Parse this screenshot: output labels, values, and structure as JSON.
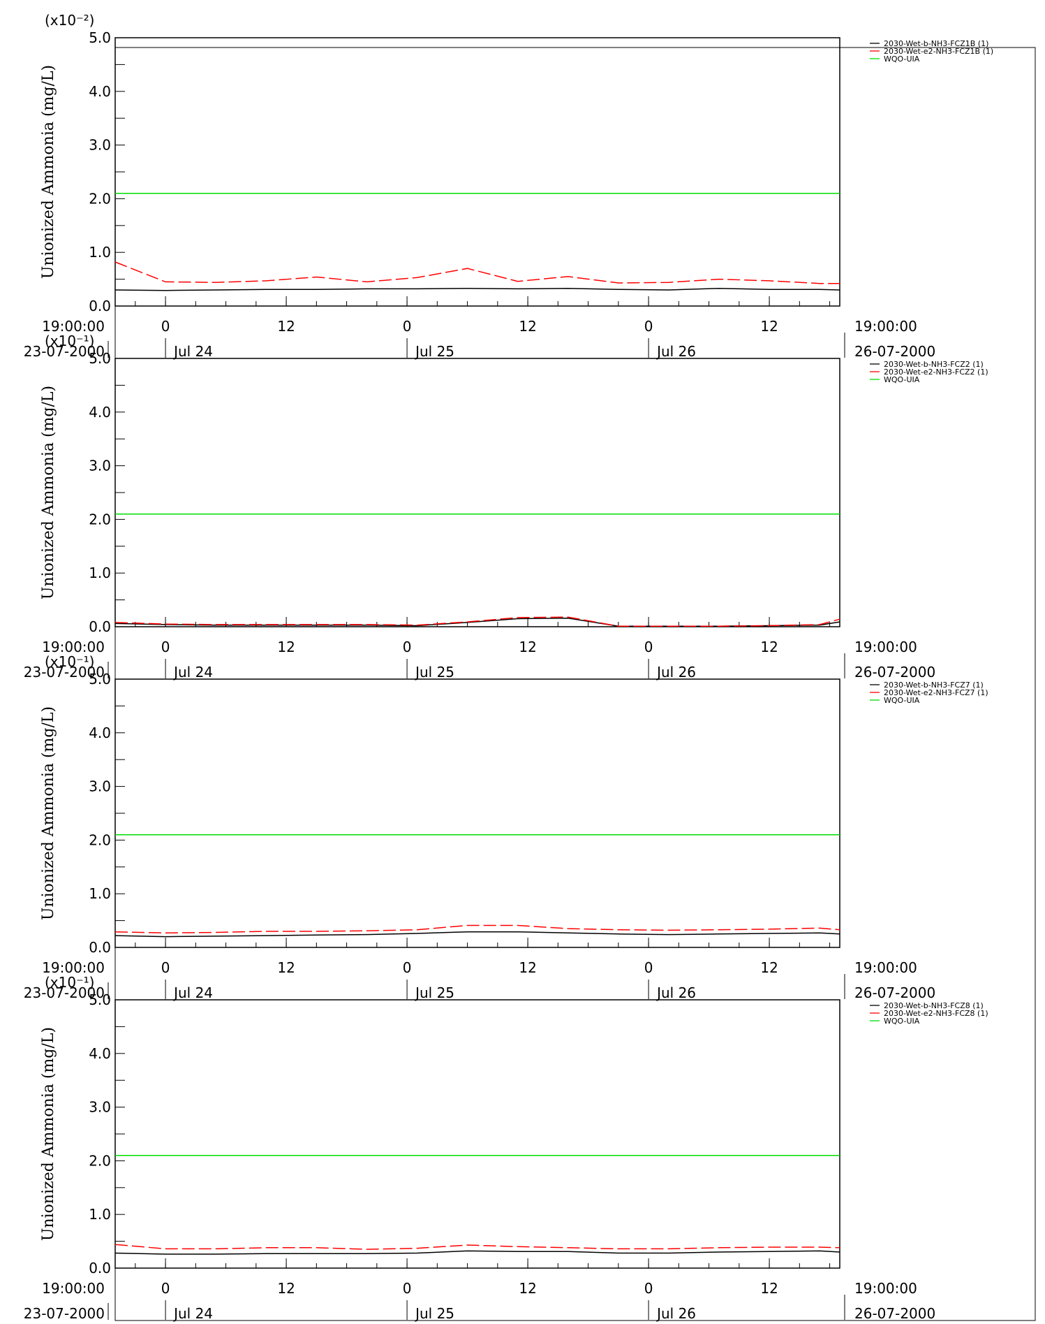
{
  "chart_data": [
    {
      "type": "line",
      "ylabel": "Unionized Ammonia (mg/L)",
      "y_multiplier_label": "(x10⁻²)",
      "ylim": [
        0,
        5.0
      ],
      "y_ticks": [
        "0.0",
        "1.0",
        "2.0",
        "3.0",
        "4.0",
        "5.0"
      ],
      "x_range": [
        "2000-07-23 19:00",
        "2000-07-26 19:00"
      ],
      "x_tick_labels": [
        "0",
        "12",
        "0",
        "12",
        "0",
        "12"
      ],
      "x_day_labels": [
        "Jul 24",
        "Jul 25",
        "Jul 26"
      ],
      "x_start_label": [
        "19:00:00",
        "23-07-2000"
      ],
      "x_end_label": [
        "19:00:00",
        "26-07-2000"
      ],
      "x_hours": [
        0,
        5,
        10,
        15,
        20,
        25,
        30,
        35,
        40,
        45,
        50,
        55,
        60,
        65,
        70,
        72
      ],
      "series": [
        {
          "name": "2030-Wet-b-NH3-FCZ1B (1)",
          "color": "#000000",
          "dash": "solid",
          "values": [
            0.3,
            0.29,
            0.3,
            0.31,
            0.31,
            0.32,
            0.32,
            0.33,
            0.32,
            0.33,
            0.31,
            0.3,
            0.33,
            0.31,
            0.31,
            0.3
          ]
        },
        {
          "name": "2030-Wet-e2-NH3-FCZ1B (1)",
          "color": "#ff0000",
          "dash": "dashed",
          "values": [
            0.82,
            0.45,
            0.44,
            0.47,
            0.54,
            0.45,
            0.53,
            0.7,
            0.46,
            0.55,
            0.43,
            0.44,
            0.5,
            0.47,
            0.42,
            0.42
          ]
        },
        {
          "name": "WQO-UIA",
          "color": "#00dd00",
          "dash": "solid",
          "values": [
            2.1,
            2.1,
            2.1,
            2.1,
            2.1,
            2.1,
            2.1,
            2.1,
            2.1,
            2.1,
            2.1,
            2.1,
            2.1,
            2.1,
            2.1,
            2.1
          ]
        }
      ]
    },
    {
      "type": "line",
      "ylabel": "Unionized Ammonia (mg/L)",
      "y_multiplier_label": "(x10⁻¹)",
      "ylim": [
        0,
        5.0
      ],
      "y_ticks": [
        "0.0",
        "1.0",
        "2.0",
        "3.0",
        "4.0",
        "5.0"
      ],
      "x_range": [
        "2000-07-23 19:00",
        "2000-07-26 19:00"
      ],
      "x_tick_labels": [
        "0",
        "12",
        "0",
        "12",
        "0",
        "12"
      ],
      "x_day_labels": [
        "Jul 24",
        "Jul 25",
        "Jul 26"
      ],
      "x_start_label": [
        "19:00:00",
        "23-07-2000"
      ],
      "x_end_label": [
        "19:00:00",
        "26-07-2000"
      ],
      "x_hours": [
        0,
        5,
        10,
        15,
        20,
        25,
        30,
        35,
        40,
        45,
        50,
        55,
        60,
        65,
        70,
        72
      ],
      "series": [
        {
          "name": "2030-Wet-b-NH3-FCZ2 (1)",
          "color": "#000000",
          "dash": "solid",
          "values": [
            0.06,
            0.04,
            0.03,
            0.03,
            0.03,
            0.03,
            0.02,
            0.08,
            0.15,
            0.16,
            0.01,
            0.01,
            0.01,
            0.02,
            0.03,
            0.09
          ]
        },
        {
          "name": "2030-Wet-e2-NH3-FCZ2 (1)",
          "color": "#ff0000",
          "dash": "dashed",
          "values": [
            0.08,
            0.05,
            0.04,
            0.04,
            0.04,
            0.04,
            0.03,
            0.09,
            0.17,
            0.18,
            0.01,
            0.01,
            0.01,
            0.02,
            0.04,
            0.14
          ]
        },
        {
          "name": "WQO-UIA",
          "color": "#00dd00",
          "dash": "solid",
          "values": [
            2.1,
            2.1,
            2.1,
            2.1,
            2.1,
            2.1,
            2.1,
            2.1,
            2.1,
            2.1,
            2.1,
            2.1,
            2.1,
            2.1,
            2.1,
            2.1
          ]
        }
      ]
    },
    {
      "type": "line",
      "ylabel": "Unionized Ammonia (mg/L)",
      "y_multiplier_label": "(x10⁻¹)",
      "ylim": [
        0,
        5.0
      ],
      "y_ticks": [
        "0.0",
        "1.0",
        "2.0",
        "3.0",
        "4.0",
        "5.0"
      ],
      "x_range": [
        "2000-07-23 19:00",
        "2000-07-26 19:00"
      ],
      "x_tick_labels": [
        "0",
        "12",
        "0",
        "12",
        "0",
        "12"
      ],
      "x_day_labels": [
        "Jul 24",
        "Jul 25",
        "Jul 26"
      ],
      "x_start_label": [
        "19:00:00",
        "23-07-2000"
      ],
      "x_end_label": [
        "19:00:00",
        "26-07-2000"
      ],
      "x_hours": [
        0,
        5,
        10,
        15,
        20,
        25,
        30,
        35,
        40,
        45,
        50,
        55,
        60,
        65,
        70,
        72
      ],
      "series": [
        {
          "name": "2030-Wet-b-NH3-FCZ7 (1)",
          "color": "#000000",
          "dash": "solid",
          "values": [
            0.22,
            0.2,
            0.21,
            0.22,
            0.23,
            0.24,
            0.26,
            0.29,
            0.29,
            0.27,
            0.25,
            0.24,
            0.25,
            0.26,
            0.27,
            0.25
          ]
        },
        {
          "name": "2030-Wet-e2-NH3-FCZ7 (1)",
          "color": "#ff0000",
          "dash": "dashed",
          "values": [
            0.29,
            0.27,
            0.28,
            0.3,
            0.3,
            0.31,
            0.33,
            0.41,
            0.41,
            0.35,
            0.33,
            0.32,
            0.33,
            0.34,
            0.36,
            0.33
          ]
        },
        {
          "name": "WQO-UIA",
          "color": "#00dd00",
          "dash": "solid",
          "values": [
            2.1,
            2.1,
            2.1,
            2.1,
            2.1,
            2.1,
            2.1,
            2.1,
            2.1,
            2.1,
            2.1,
            2.1,
            2.1,
            2.1,
            2.1,
            2.1
          ]
        }
      ]
    },
    {
      "type": "line",
      "ylabel": "Unionized Ammonia (mg/L)",
      "y_multiplier_label": "(x10⁻¹)",
      "ylim": [
        0,
        5.0
      ],
      "y_ticks": [
        "0.0",
        "1.0",
        "2.0",
        "3.0",
        "4.0",
        "5.0"
      ],
      "x_range": [
        "2000-07-23 19:00",
        "2000-07-26 19:00"
      ],
      "x_tick_labels": [
        "0",
        "12",
        "0",
        "12",
        "0",
        "12"
      ],
      "x_day_labels": [
        "Jul 24",
        "Jul 25",
        "Jul 26"
      ],
      "x_start_label": [
        "19:00:00",
        "23-07-2000"
      ],
      "x_end_label": [
        "19:00:00",
        "26-07-2000"
      ],
      "x_hours": [
        0,
        5,
        10,
        15,
        20,
        25,
        30,
        35,
        40,
        45,
        50,
        55,
        60,
        65,
        70,
        72
      ],
      "series": [
        {
          "name": "2030-Wet-b-NH3-FCZ8 (1)",
          "color": "#000000",
          "dash": "solid",
          "values": [
            0.28,
            0.26,
            0.26,
            0.27,
            0.27,
            0.27,
            0.28,
            0.32,
            0.31,
            0.31,
            0.28,
            0.28,
            0.3,
            0.31,
            0.32,
            0.3
          ]
        },
        {
          "name": "2030-Wet-e2-NH3-FCZ8 (1)",
          "color": "#ff0000",
          "dash": "dashed",
          "values": [
            0.44,
            0.36,
            0.36,
            0.38,
            0.38,
            0.35,
            0.37,
            0.43,
            0.4,
            0.38,
            0.36,
            0.36,
            0.38,
            0.39,
            0.39,
            0.38
          ]
        },
        {
          "name": "WQO-UIA",
          "color": "#00dd00",
          "dash": "solid",
          "values": [
            2.1,
            2.1,
            2.1,
            2.1,
            2.1,
            2.1,
            2.1,
            2.1,
            2.1,
            2.1,
            2.1,
            2.1,
            2.1,
            2.1,
            2.1,
            2.1
          ]
        }
      ]
    }
  ]
}
